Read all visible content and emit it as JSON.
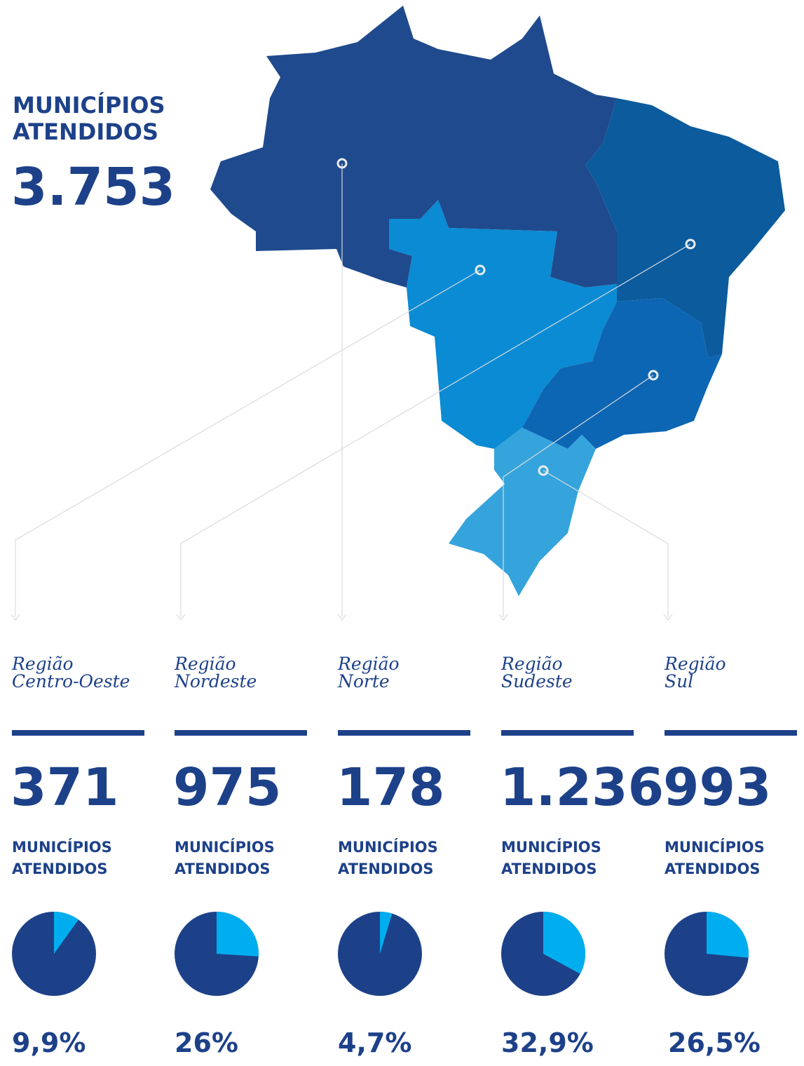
{
  "header": {
    "title": [
      "MUNICÍPIOS",
      "ATENDIDOS"
    ],
    "total": "3.753"
  },
  "regions": [
    {
      "name": [
        "Região",
        "Centro-Oeste"
      ],
      "count": "371",
      "label": [
        "MUNICÍPIOS",
        "ATENDIDOS"
      ],
      "share": 9.9,
      "share_label": "9,9%"
    },
    {
      "name": [
        "Região",
        "Nordeste"
      ],
      "count": "975",
      "label": [
        "MUNICÍPIOS",
        "ATENDIDOS"
      ],
      "share": 26,
      "share_label": "26%"
    },
    {
      "name": [
        "Região",
        "Norte"
      ],
      "count": "178",
      "label": [
        "MUNICÍPIOS",
        "ATENDIDOS"
      ],
      "share": 4.7,
      "share_label": "4,7%"
    },
    {
      "name": [
        "Região",
        "Sudeste"
      ],
      "count": "1.236",
      "label": [
        "MUNICÍPIOS",
        "ATENDIDOS"
      ],
      "share": 32.9,
      "share_label": "32,9%"
    },
    {
      "name": [
        "Região",
        "Sul"
      ],
      "count": "993",
      "label": [
        "MUNICÍPIOS",
        "ATENDIDOS"
      ],
      "share": 26.5,
      "share_label": "26,5%"
    }
  ]
}
